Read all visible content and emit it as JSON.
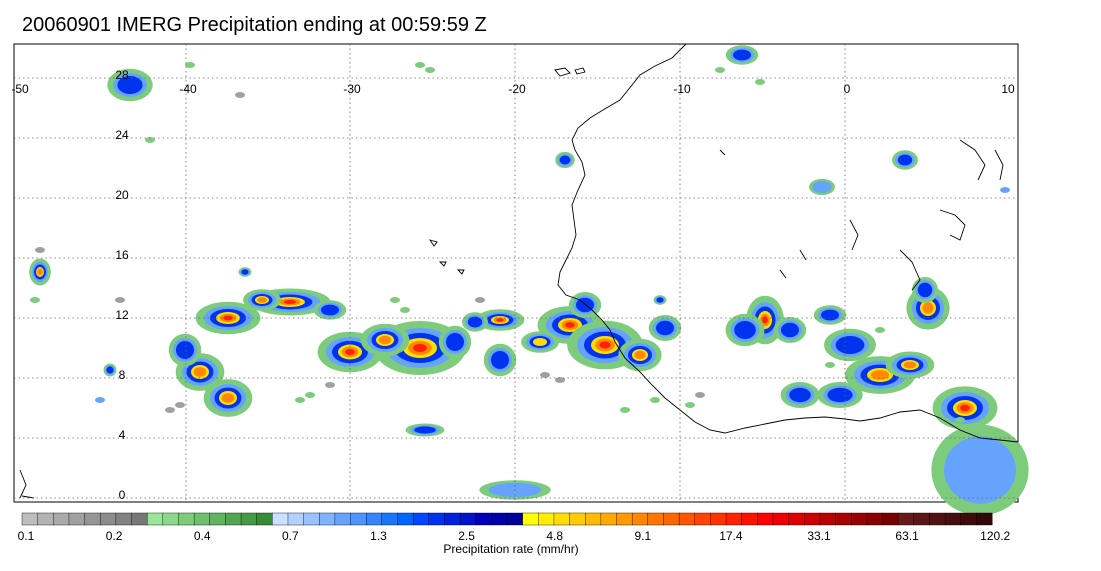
{
  "title": "20060901 IMERG Precipitation ending at 00:59:59 Z",
  "map": {
    "lon_range": [
      -50,
      10
    ],
    "lat_range": [
      -1,
      29
    ],
    "lon_ticks": [
      "-50",
      "-40",
      "-30",
      "-20",
      "-10",
      "0",
      "10"
    ],
    "lat_ticks": [
      "28",
      "24",
      "20",
      "16",
      "12",
      "8",
      "4",
      "0"
    ],
    "gridlines": true,
    "gridline_style": "dotted"
  },
  "colorbar": {
    "label": "Precipitation rate (mm/hr)",
    "tick_labels": [
      "0.1",
      "0.2",
      "0.4",
      "0.7",
      "1.3",
      "2.5",
      "4.8",
      "9.1",
      "17.4",
      "33.1",
      "63.1",
      "120.2"
    ],
    "colors": [
      "#bdbdbd",
      "#b3b3b3",
      "#aaaaaa",
      "#a0a0a0",
      "#969696",
      "#8c8c8c",
      "#828282",
      "#787878",
      "#99e699",
      "#8ad98a",
      "#7ccc7c",
      "#6ebf6e",
      "#60b360",
      "#52a652",
      "#449944",
      "#368c36",
      "#cce0ff",
      "#b3d1ff",
      "#99c2ff",
      "#80b3ff",
      "#66a3ff",
      "#4d94ff",
      "#3385ff",
      "#1a75ff",
      "#0066ff",
      "#0047ff",
      "#0033ee",
      "#0022dd",
      "#0011cc",
      "#0000bb",
      "#0000aa",
      "#000099",
      "#ffff00",
      "#ffee00",
      "#ffdd00",
      "#ffcc00",
      "#ffbb00",
      "#ffaa00",
      "#ff9900",
      "#ff8800",
      "#ff7700",
      "#ff6600",
      "#ff5500",
      "#ff4400",
      "#ff3300",
      "#ff2200",
      "#ff1100",
      "#ff0000",
      "#ee0000",
      "#dd0000",
      "#cc0000",
      "#bb0000",
      "#aa0000",
      "#990000",
      "#880000",
      "#770000",
      "#661a1a",
      "#5c1515",
      "#521111",
      "#480d0d",
      "#3e0a0a",
      "#340606"
    ]
  },
  "precip_colors": {
    "gray": "#a0a0a0",
    "green": "#7ccc7c",
    "lightblue": "#66a3ff",
    "blue": "#0033ee",
    "yellow": "#ffdd00",
    "orange": "#ff8800",
    "red": "#ff2200"
  }
}
